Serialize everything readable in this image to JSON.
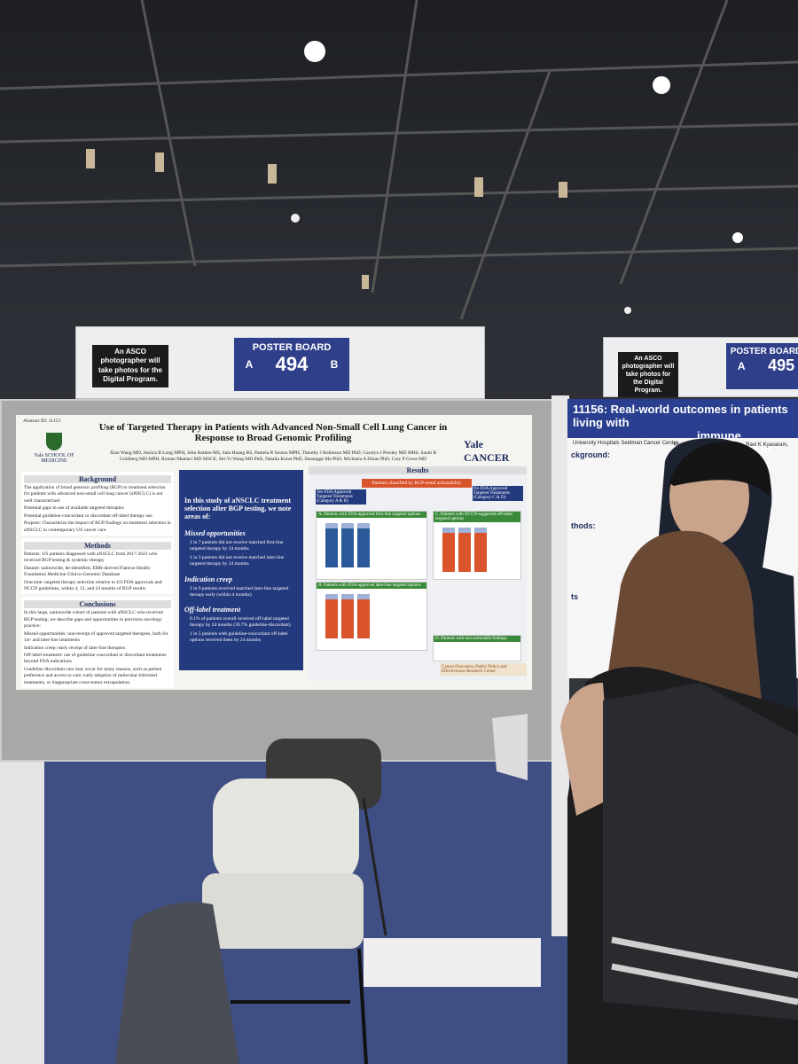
{
  "signs": [
    {
      "notice": "An ASCO photographer will take photos for the Digital Program.",
      "label": "POSTER BOARD",
      "left": "A",
      "number": "494",
      "right": "B"
    },
    {
      "notice": "An ASCO photographer will take photos for the Digital Program.",
      "label": "POSTER BOARD",
      "left": "A",
      "number": "495"
    }
  ],
  "poster": {
    "abstract_id": "Abstract ID: 11153",
    "title": "Use of Targeted Therapy in Patients with Advanced Non-Small Cell Lung Cancer in Response to Broad Genomic Profiling",
    "authors": "Xiao Wang MD, Jessica B Long MPH, John Rothen MS, Sala Huang BS, Pamela R Soulos MPH, Timothy J Robinson MD PhD, Carolyn J Presley MD MHS, Sarah B Goldberg MD MPH, Roman Mantaci MD MSCE, Shi-Yi Wang MD PhD, Natalia Kunst PhD, Shuangge Ma PhD, Michaela A Dinan PhD, Cary P Gross MD",
    "logo_left": "Yale SCHOOL OF MEDICINE",
    "logo_right": "Yale CANCER CENTER",
    "background": {
      "heading": "Background",
      "items": [
        "The application of broad genomic profiling (BGP) to treatment selection for patients with advanced non-small cell lung cancer (aNSCLC) is not well characterized",
        "Potential gaps in use of available targeted therapies",
        "Potential guideline-concordant or discordant off-label therapy use",
        "Purpose: Characterize the impact of BGP findings on treatment selection in aNSCLC in contemporary US cancer care"
      ]
    },
    "methods": {
      "heading": "Methods",
      "items": [
        "Patients: US patients diagnosed with aNSCLC from 2017-2023 who received BGP testing & systemic therapy",
        "Dataset: nationwide, de-identified, EHR-derived Flatiron Health-Foundation Medicine Clinico-Genomic Database",
        "Outcome: targeted therapy selection relative to US FDA approvals and NCCN guidelines, within 4, 12, and 24 months of BGP results"
      ]
    },
    "conclusions": {
      "heading": "Conclusions",
      "items": [
        "In this large, nationwide cohort of patients with aNSCLC who received BGP testing, we describe gaps and opportunities in precision oncology practice:",
        "Missed opportunities: non-receipt of approved targeted therapies, both for 1st- and later-line treatments",
        "Indication creep: early receipt of later-line therapies",
        "Off-label treatment: use of guideline concordant or discordant treatments beyond FDA indications",
        "Guideline discordant care may occur for many reasons, such as patient preference and access to care; early adoption of molecular-informed treatments, or inappropriate cross-tumor extrapolation."
      ]
    },
    "key": {
      "intro": "In this study of aNSCLC treatment selection after BGP testing, we note areas of:",
      "groups": [
        {
          "heading": "Missed opportunities",
          "items": [
            "1 in 7 patients did not receive matched first-line targeted therapy by 24 months",
            "1 in 3 patients did not receive matched later-line targeted therapy by 24 months"
          ]
        },
        {
          "heading": "Indication creep",
          "items": [
            "1 in 9 patients received matched later-line targeted therapy early (within 4 months)"
          ]
        },
        {
          "heading": "Off-label treatment",
          "items": [
            "6.1% of patients overall received off-label targeted therapy by 24 months (39.7% guideline-discordant)",
            "1 in 5 patients with guideline-concordant off-label options received them by 24 months"
          ]
        }
      ]
    },
    "results": {
      "heading": "Results",
      "classified": "Patients classified by BGP result actionability",
      "yes": "Yes FDA Approved Targeted Treatments (Category A & B)",
      "no": "No FDA Approved Targeted Treatments (Category C & D)",
      "panels": [
        "A. Patients with FDA-approved first-line targeted options",
        "B. Patients with FDA-approved later-line targeted options",
        "C. Patients with NCCN-suggested off-label targeted options",
        "D. Patients with non-actionable findings"
      ],
      "footer": "Cancer Outcomes, Public Policy and Effectiveness Research Center"
    }
  },
  "neighbor_poster": {
    "title": "11156: Real-world outcomes in patients living with",
    "subtitle": "immune checkpoint in",
    "authors": "Melinda L Hsu, Fangzhou Liu, Ravi K Kyasaram, Jeff",
    "institution": "University Hospitals Seidman Cancer Center",
    "sections": [
      "ckground:",
      "thods:",
      "ts"
    ]
  }
}
